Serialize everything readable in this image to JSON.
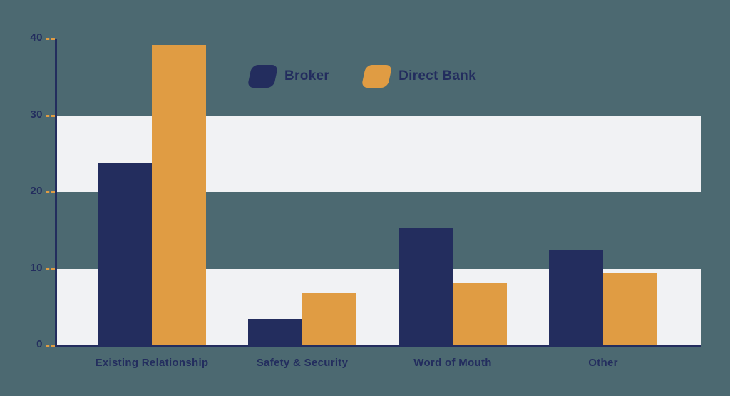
{
  "colors": {
    "background": "#4C6971",
    "navy": "#232D5E",
    "orange": "#E09C43",
    "band": "#F1F2F4",
    "axis": "#232D5E",
    "tick_dash": "#E09C43",
    "text": "#232D5E"
  },
  "legend": {
    "items": [
      {
        "label": "Broker",
        "swatch": "navy-swatch"
      },
      {
        "label": "Direct Bank",
        "swatch": "orange-swatch"
      }
    ]
  },
  "chart_data": {
    "type": "bar",
    "title": "",
    "xlabel": "",
    "ylabel": "",
    "categories": [
      "Existing Relationship",
      "Safety & Security",
      "Word of Mouth",
      "Other"
    ],
    "series": [
      {
        "name": "Broker",
        "color": "#232D5E",
        "values": [
          23.8,
          3.4,
          15.3,
          12.4
        ]
      },
      {
        "name": "Direct Bank",
        "color": "#E09C43",
        "values": [
          39.2,
          6.8,
          8.2,
          9.4
        ]
      }
    ],
    "ylim": [
      0,
      40
    ],
    "yticks": [
      0,
      10,
      20,
      30,
      40
    ],
    "grid": "off",
    "background_bands": [
      [
        0,
        10
      ],
      [
        20,
        30
      ]
    ],
    "band_color": "#F1F2F4",
    "legend_position": "top-center"
  }
}
